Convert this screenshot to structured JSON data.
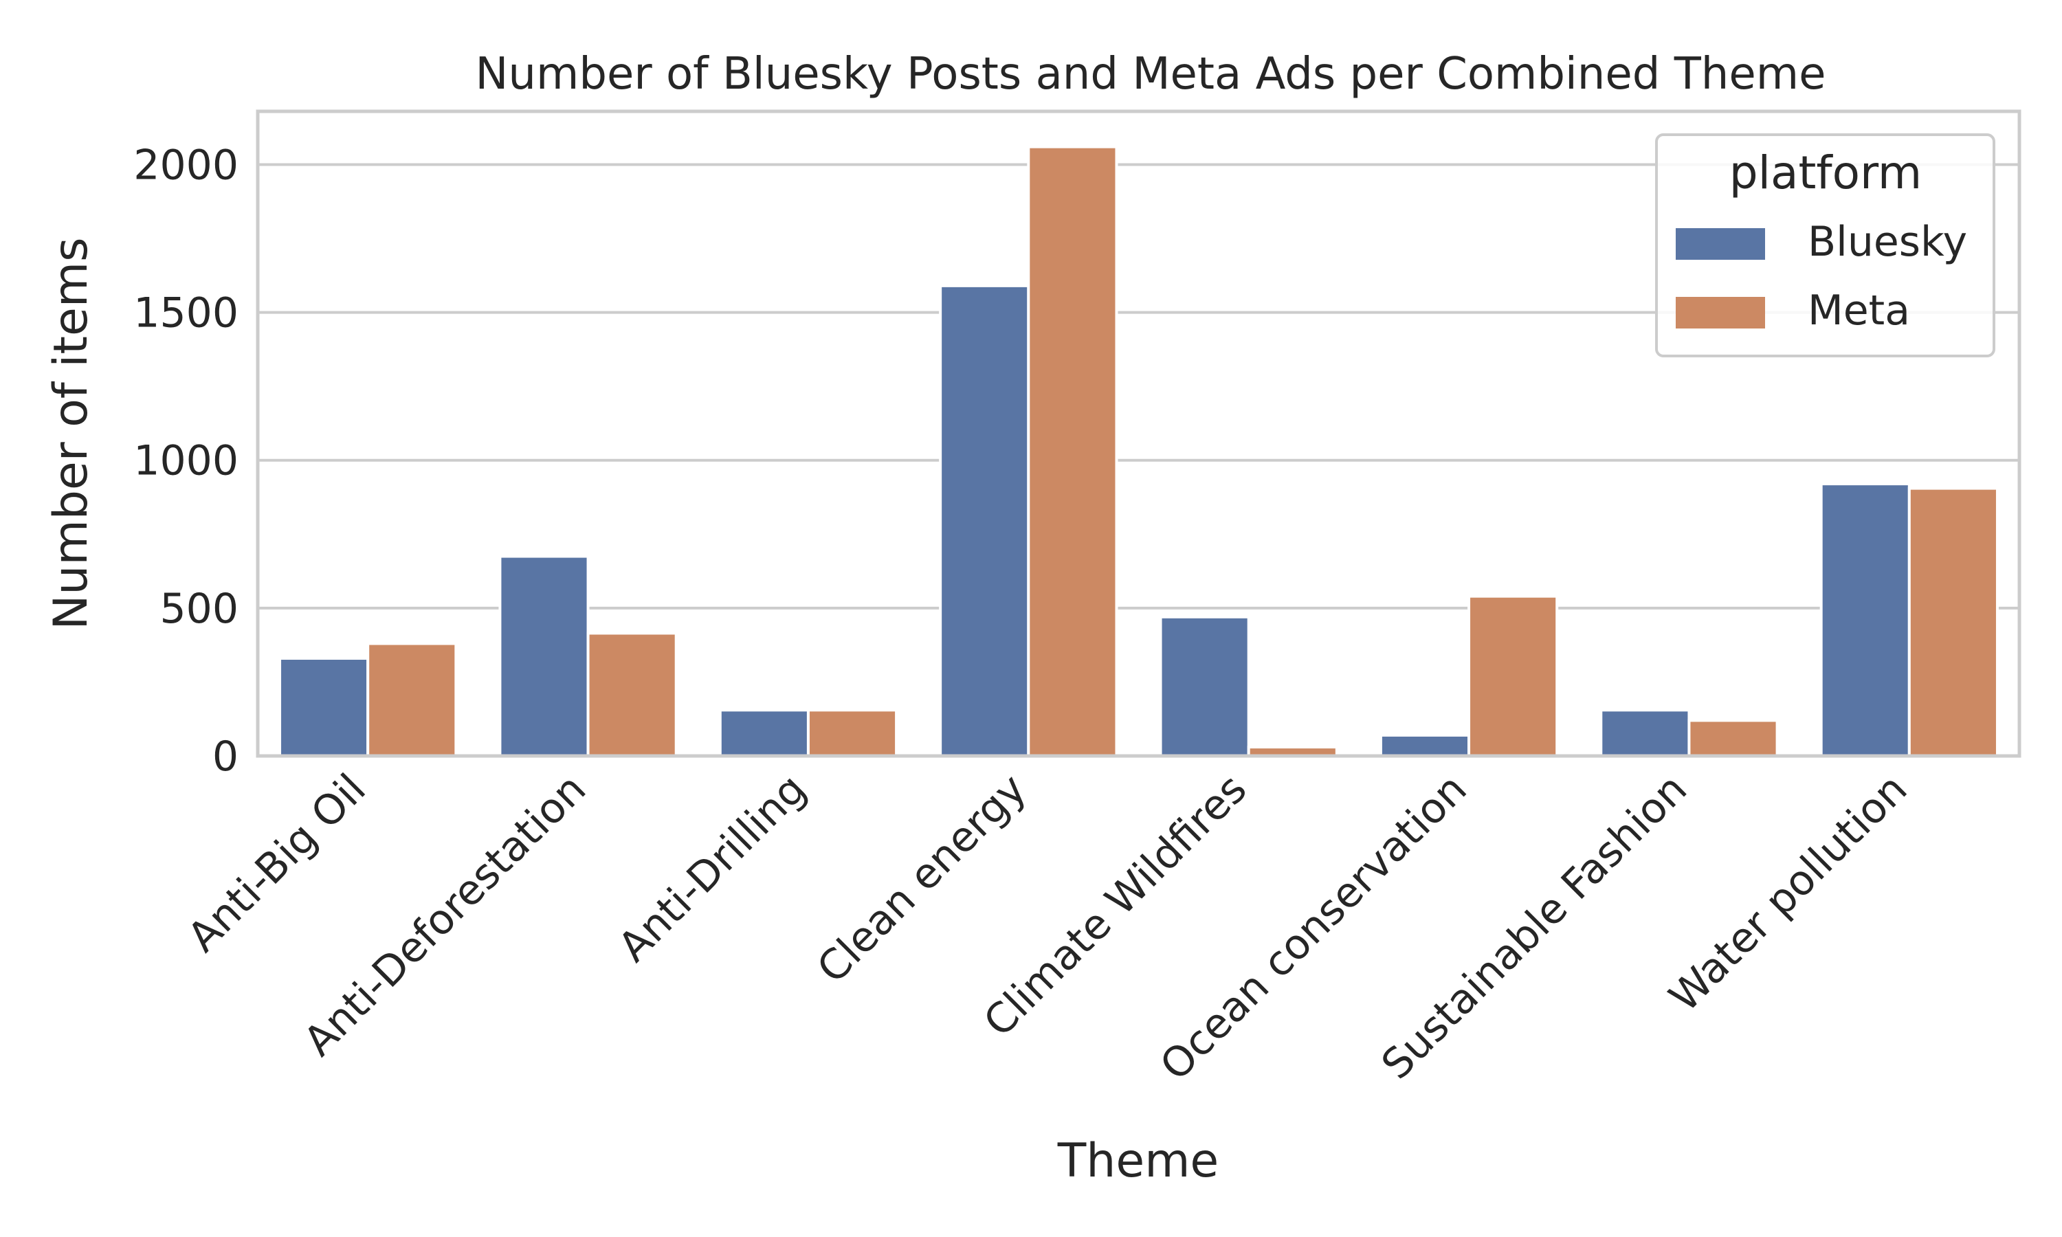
{
  "chart_data": {
    "type": "bar",
    "title": "Number of Bluesky Posts and Meta Ads per Combined Theme",
    "xlabel": "Theme",
    "ylabel": "Number of items",
    "ylim": [
      0,
      2180
    ],
    "yticks": [
      0,
      500,
      1000,
      1500,
      2000
    ],
    "grid": true,
    "legend": {
      "title": "platform",
      "placement": "top-right"
    },
    "categories": [
      "Anti-Big Oil",
      "Anti-Deforestation",
      "Anti-Drilling",
      "Clean energy",
      "Climate Wildfires",
      "Ocean conservation",
      "Sustainable Fashion",
      "Water pollution"
    ],
    "series": [
      {
        "name": "Bluesky",
        "color": "#5975a4",
        "values": [
          330,
          675,
          155,
          1590,
          470,
          70,
          155,
          920
        ]
      },
      {
        "name": "Meta",
        "color": "#cc8963",
        "values": [
          380,
          415,
          155,
          2060,
          30,
          540,
          120,
          905
        ]
      }
    ]
  }
}
